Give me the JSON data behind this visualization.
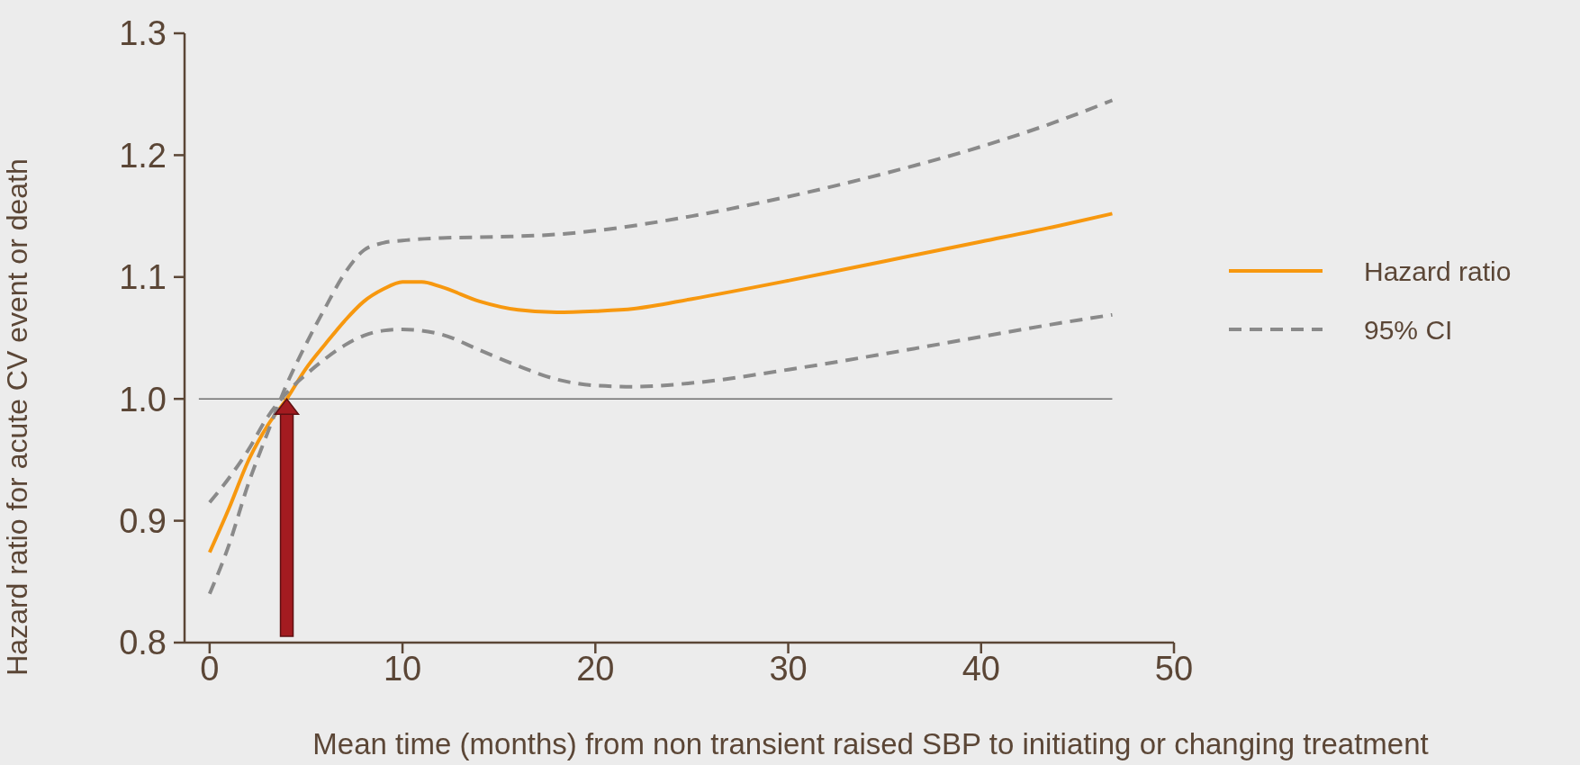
{
  "chart_data": {
    "type": "line",
    "xlabel": "Mean time (months) from non transient raised SBP to initiating or changing treatment",
    "ylabel": "Hazard ratio for acute CV event or death",
    "series": [
      {
        "name": "Hazard ratio",
        "color": "#f7980f",
        "line_style": "solid",
        "x": [
          0,
          1,
          2,
          3,
          4,
          5,
          6,
          7,
          8,
          9,
          10,
          11,
          12,
          14,
          16,
          18,
          20,
          22,
          25,
          30,
          35,
          40,
          44,
          46.8
        ],
        "values": [
          0.874,
          0.91,
          0.949,
          0.978,
          1.0,
          1.025,
          1.045,
          1.064,
          1.08,
          1.09,
          1.096,
          1.096,
          1.092,
          1.08,
          1.073,
          1.071,
          1.072,
          1.074,
          1.082,
          1.097,
          1.113,
          1.129,
          1.142,
          1.152
        ]
      },
      {
        "name": "95% CI",
        "color": "#8a8a8a",
        "line_style": "dashed",
        "x": [
          0,
          1,
          2,
          3,
          4,
          5,
          6,
          7,
          8,
          9,
          10,
          12,
          15,
          18,
          20,
          25,
          30,
          35,
          40,
          44,
          46.8
        ],
        "values": [
          0.84,
          0.88,
          0.93,
          0.972,
          1.012,
          1.045,
          1.075,
          1.103,
          1.122,
          1.128,
          1.13,
          1.132,
          1.133,
          1.135,
          1.138,
          1.15,
          1.166,
          1.185,
          1.207,
          1.228,
          1.245
        ]
      },
      {
        "color": "#8a8a8a",
        "line_style": "dashed",
        "x": [
          0,
          1,
          2,
          3,
          4,
          5,
          6,
          7,
          8,
          9,
          10,
          12,
          14,
          16,
          18,
          20,
          22,
          25,
          30,
          35,
          40,
          44,
          46.8
        ],
        "values": [
          0.915,
          0.935,
          0.958,
          0.985,
          1.005,
          1.02,
          1.033,
          1.044,
          1.052,
          1.056,
          1.057,
          1.053,
          1.04,
          1.027,
          1.016,
          1.011,
          1.01,
          1.013,
          1.024,
          1.037,
          1.051,
          1.062,
          1.069
        ]
      }
    ],
    "xlim": [
      -1.3,
      50
    ],
    "xticks": [
      0,
      10,
      20,
      30,
      40,
      50
    ],
    "ylim": [
      0.8,
      1.3
    ],
    "yticks": [
      0.8,
      0.9,
      {
        "value": 1,
        "label": "1.0"
      },
      1.1,
      1.2,
      1.3
    ],
    "ref_lines": [
      {
        "axis": "y",
        "value": 1,
        "color": "#6e6e6e"
      }
    ],
    "grid": false,
    "legend": "right"
  }
}
